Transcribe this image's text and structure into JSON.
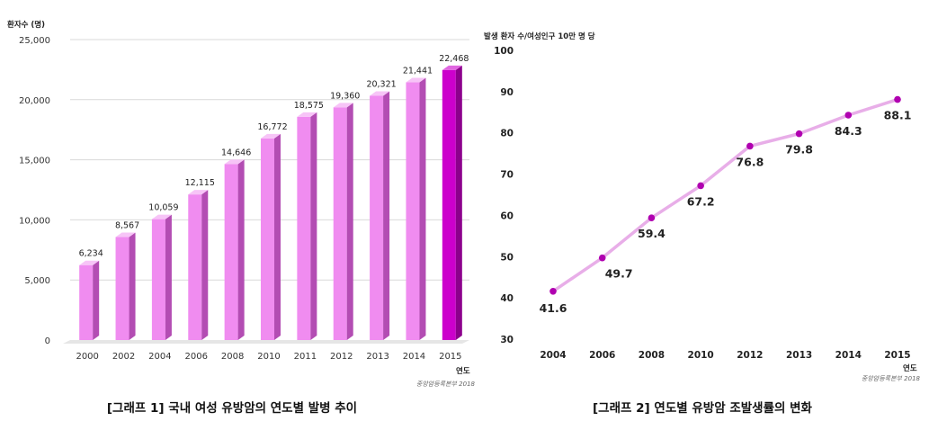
{
  "chart_data": [
    {
      "type": "bar",
      "title": "[그래프 1] 국내 여성 유방암의 연도별 발병 추이",
      "ylabel": "환자수 (명)",
      "xlabel": "연도",
      "source": "중앙암등록본부 2018",
      "ylim": [
        0,
        25000
      ],
      "yticks": [
        "0",
        "5,000",
        "10,000",
        "15,000",
        "20,000",
        "25,000"
      ],
      "ytick_values": [
        0,
        5000,
        10000,
        15000,
        20000,
        25000
      ],
      "categories": [
        "2000",
        "2002",
        "2004",
        "2006",
        "2008",
        "2010",
        "2011",
        "2012",
        "2013",
        "2014",
        "2015"
      ],
      "values": [
        6234,
        8567,
        10059,
        12115,
        14646,
        16772,
        18575,
        19360,
        20321,
        21441,
        22468
      ],
      "value_labels": [
        "6,234",
        "8,567",
        "10,059",
        "12,115",
        "14,646",
        "16,772",
        "18,575",
        "19,360",
        "20,321",
        "21,441",
        "22,468"
      ],
      "colors": {
        "bar": "#f08cf0",
        "bar_side": "#b34db3",
        "bar_top": "#f7c4f7",
        "highlight": "#cc00cc",
        "highlight_side": "#8c008c",
        "highlight_top": "#e066e0",
        "grid": "#d9d9d9"
      },
      "grid": true
    },
    {
      "type": "line",
      "title": "[그래프 2] 연도별 유방암 조발생률의 변화",
      "ylabel": "발생 환자 수/여성인구 10만 명 당",
      "xlabel": "연도",
      "source": "중앙암등록본부 2018",
      "ylim": [
        30,
        100
      ],
      "yticks": [
        "30",
        "40",
        "50",
        "60",
        "70",
        "80",
        "90",
        "100"
      ],
      "ytick_values": [
        30,
        40,
        50,
        60,
        70,
        80,
        90,
        100
      ],
      "x": [
        "2004",
        "2006",
        "2008",
        "2010",
        "2012",
        "2013",
        "2014",
        "2015"
      ],
      "values": [
        41.6,
        49.7,
        59.4,
        67.2,
        76.8,
        79.8,
        84.3,
        88.1
      ],
      "value_labels": [
        "41.6",
        "49.7",
        "59.4",
        "67.2",
        "76.8",
        "79.8",
        "84.3",
        "88.1"
      ],
      "colors": {
        "line": "#e8aee8",
        "marker": "#b000b0",
        "label": "#222222",
        "highlight_label": "#ee1111"
      },
      "grid": false
    }
  ]
}
